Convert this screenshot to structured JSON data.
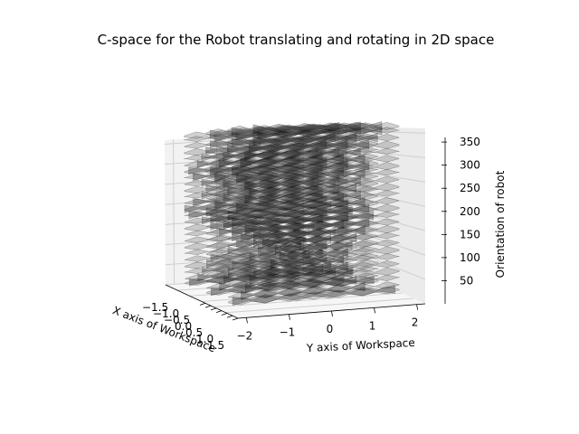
{
  "chart_data": {
    "type": "surface3d",
    "title": "C-space for the Robot translating and rotating in 2D space",
    "xlabel": "X axis of Workspace",
    "ylabel": "Y axis of Workspace",
    "zlabel": "Orientation of robot",
    "x_ticks": [
      "−1.5",
      "−1.0",
      "−0.5",
      "0.0",
      "0.5",
      "1.0",
      "1.5"
    ],
    "y_ticks": [
      "−2",
      "−1",
      "0",
      "1",
      "2"
    ],
    "z_ticks": [
      "50",
      "100",
      "150",
      "200",
      "250",
      "300",
      "350"
    ],
    "xlim": [
      -1.5,
      1.5
    ],
    "ylim": [
      -2.2,
      2.2
    ],
    "zlim": [
      0,
      360
    ],
    "grid": true,
    "surface_color": "#000000",
    "pane_color": "#f2f2f2",
    "grid_color": "#cfcfcf",
    "layers": [
      {
        "z": 10,
        "ymin": -1.9,
        "ymax": 1.9
      },
      {
        "z": 20,
        "ymin": -1.7,
        "ymax": 1.2
      },
      {
        "z": 35,
        "ymin": -1.6,
        "ymax": 1.0
      },
      {
        "z": 50,
        "ymin": -1.5,
        "ymax": 0.9
      },
      {
        "z": 65,
        "ymin": -1.4,
        "ymax": 0.8
      },
      {
        "z": 80,
        "ymin": -1.0,
        "ymax": 0.7
      },
      {
        "z": 95,
        "ymin": -0.8,
        "ymax": 0.8
      },
      {
        "z": 110,
        "ymin": -0.9,
        "ymax": 0.9
      },
      {
        "z": 125,
        "ymin": -1.2,
        "ymax": 1.0
      },
      {
        "z": 140,
        "ymin": -1.4,
        "ymax": 1.2
      },
      {
        "z": 155,
        "ymin": -1.6,
        "ymax": 1.3
      },
      {
        "z": 170,
        "ymin": -1.9,
        "ymax": 1.4
      },
      {
        "z": 185,
        "ymin": -2.0,
        "ymax": 1.3
      },
      {
        "z": 200,
        "ymin": -1.8,
        "ymax": 1.2
      },
      {
        "z": 215,
        "ymin": -1.6,
        "ymax": 1.1
      },
      {
        "z": 230,
        "ymin": -1.5,
        "ymax": 1.0
      },
      {
        "z": 245,
        "ymin": -1.6,
        "ymax": 1.1
      },
      {
        "z": 260,
        "ymin": -1.8,
        "ymax": 1.2
      },
      {
        "z": 275,
        "ymin": -1.9,
        "ymax": 1.3
      },
      {
        "z": 290,
        "ymin": -1.7,
        "ymax": 1.2
      },
      {
        "z": 305,
        "ymin": -1.6,
        "ymax": 1.1
      },
      {
        "z": 320,
        "ymin": -1.5,
        "ymax": 1.3
      },
      {
        "z": 335,
        "ymin": -1.4,
        "ymax": 1.5
      },
      {
        "z": 350,
        "ymin": -1.3,
        "ymax": 1.6
      },
      {
        "z": 360,
        "ymin": -1.4,
        "ymax": 1.6
      }
    ]
  }
}
